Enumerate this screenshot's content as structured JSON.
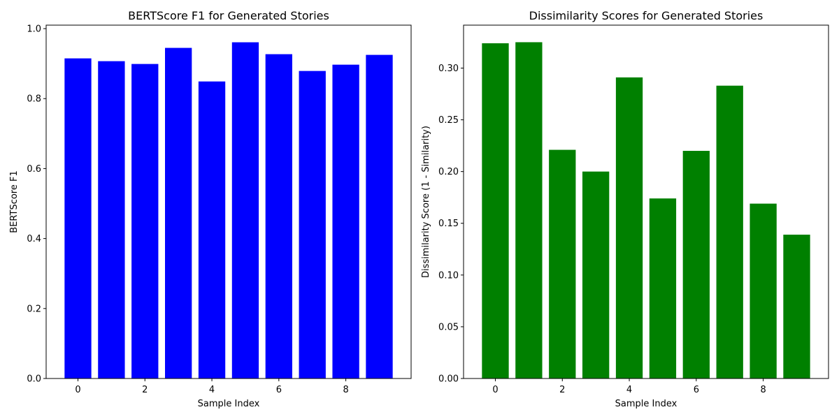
{
  "chart_data": [
    {
      "type": "bar",
      "title": "BERTScore F1 for Generated Stories",
      "xlabel": "Sample Index",
      "ylabel": "BERTScore F1",
      "color": "#0000ff",
      "categories": [
        0,
        1,
        2,
        3,
        4,
        5,
        6,
        7,
        8,
        9
      ],
      "values": [
        0.915,
        0.907,
        0.899,
        0.945,
        0.849,
        0.961,
        0.927,
        0.879,
        0.897,
        0.925
      ],
      "xlim": [
        -0.95,
        9.95
      ],
      "ylim": [
        0,
        1.01
      ],
      "xticks": [
        0,
        2,
        4,
        6,
        8
      ],
      "yticks": [
        0.0,
        0.2,
        0.4,
        0.6,
        0.8,
        1.0
      ],
      "ytick_labels": [
        "0.0",
        "0.2",
        "0.4",
        "0.6",
        "0.8",
        "1.0"
      ],
      "grid": false
    },
    {
      "type": "bar",
      "title": "Dissimilarity Scores for Generated Stories",
      "xlabel": "Sample Index",
      "ylabel": "Dissimilarity Score (1 - Similarity)",
      "color": "#008000",
      "categories": [
        0,
        1,
        2,
        3,
        4,
        5,
        6,
        7,
        8,
        9
      ],
      "values": [
        0.324,
        0.325,
        0.221,
        0.2,
        0.291,
        0.174,
        0.22,
        0.283,
        0.169,
        0.139
      ],
      "xlim": [
        -0.95,
        9.95
      ],
      "ylim": [
        0,
        0.3415
      ],
      "xticks": [
        0,
        2,
        4,
        6,
        8
      ],
      "yticks": [
        0.0,
        0.05,
        0.1,
        0.15,
        0.2,
        0.25,
        0.3
      ],
      "ytick_labels": [
        "0.00",
        "0.05",
        "0.10",
        "0.15",
        "0.20",
        "0.25",
        "0.30"
      ],
      "grid": false
    }
  ]
}
